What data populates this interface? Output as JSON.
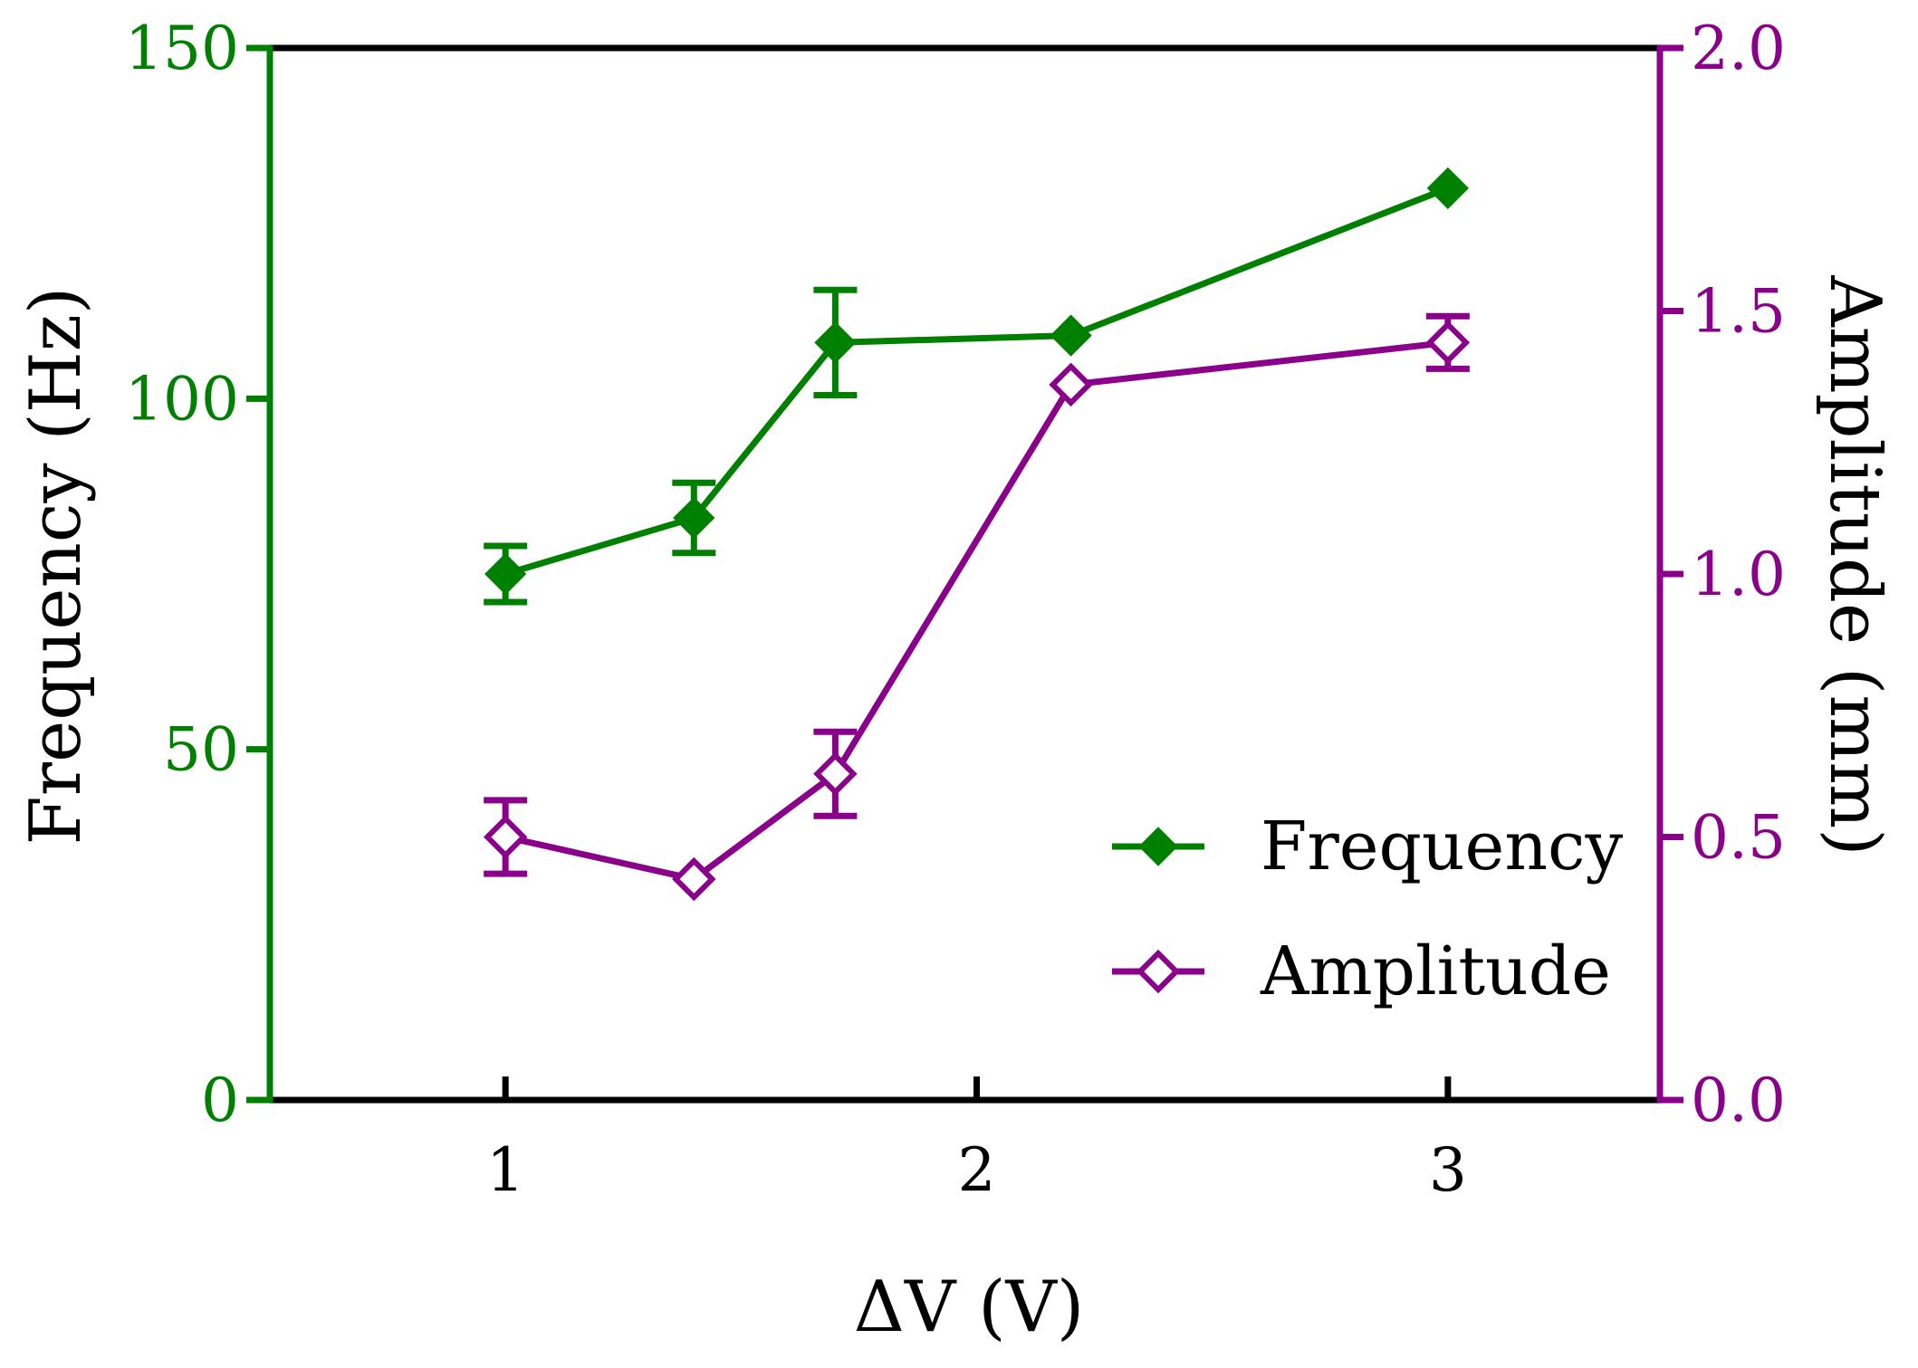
{
  "chart_data": {
    "type": "line",
    "x": [
      1.0,
      1.4,
      1.7,
      2.2,
      3.0
    ],
    "xlabel": "ΔV (V)",
    "xlim": [
      0.5,
      3.45
    ],
    "xticks": [
      1,
      2,
      3
    ],
    "xtick_labels": [
      "1",
      "2",
      "3"
    ],
    "series": [
      {
        "name": "Frequency",
        "axis": "left",
        "color": "#008000",
        "marker": "filled-diamond",
        "values": [
          75,
          83,
          108,
          109,
          130
        ],
        "errors": [
          4,
          5,
          7.5,
          0,
          0
        ]
      },
      {
        "name": "Amplitude",
        "axis": "right",
        "color": "#8B008B",
        "marker": "open-diamond",
        "values": [
          0.5,
          0.42,
          0.62,
          1.36,
          1.44
        ],
        "errors": [
          0.07,
          0,
          0.08,
          0,
          0.05
        ]
      }
    ],
    "left_axis": {
      "label": "Frequency (Hz)",
      "ylim": [
        0,
        150
      ],
      "ticks": [
        0,
        50,
        100,
        150
      ],
      "tick_labels": [
        "0",
        "50",
        "100",
        "150"
      ],
      "color": "#008000"
    },
    "right_axis": {
      "label": "Amplitude (mm)",
      "ylim": [
        0,
        2.0
      ],
      "ticks": [
        0,
        0.5,
        1.0,
        1.5,
        2.0
      ],
      "tick_labels": [
        "0.0",
        "0.5",
        "1.0",
        "1.5",
        "2.0"
      ],
      "color": "#8B008B"
    },
    "legend": {
      "position": "lower-right",
      "entries": [
        "Frequency",
        "Amplitude"
      ]
    },
    "grid": false
  }
}
